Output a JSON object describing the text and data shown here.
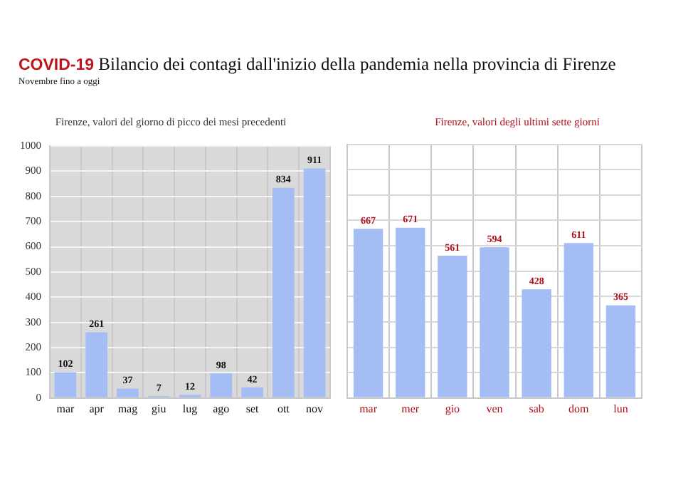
{
  "chart_data": [
    {
      "type": "bar",
      "title": "COVID-19 Bilancio dei contagi dall'inizio della pandemia nella provincia di Firenze",
      "subtitle": "Novembre fino a oggi",
      "annotations": [
        "Firenze, valori del giorno di picco dei mesi precedenti"
      ],
      "categories": [
        "mar",
        "apr",
        "mag",
        "giu",
        "lug",
        "ago",
        "set",
        "ott",
        "nov"
      ],
      "values": [
        102,
        261,
        37,
        7,
        12,
        98,
        42,
        834,
        911
      ],
      "color": "#a4bdf5",
      "ylim": [
        0,
        1000
      ],
      "yticks": [
        0,
        100,
        200,
        300,
        400,
        500,
        600,
        700,
        800,
        900,
        1000
      ],
      "grid": true,
      "data_labels": true
    },
    {
      "type": "bar",
      "title": "Firenze, valori degli ultimi sette giorni",
      "categories": [
        "mar",
        "mer",
        "gio",
        "ven",
        "sab",
        "dom",
        "lun"
      ],
      "values": [
        667,
        671,
        561,
        594,
        428,
        611,
        365
      ],
      "color": "#a4bdf5",
      "ylim": [
        0,
        1000
      ],
      "yticks": [
        {
          "value": 0,
          "label": null
        },
        {
          "value": 100,
          "label": null
        },
        {
          "value": 200,
          "label": null
        },
        {
          "value": 300,
          "label": null
        },
        {
          "value": 400,
          "label": null
        },
        {
          "value": 500,
          "label": null
        },
        {
          "value": 600,
          "label": null
        },
        {
          "value": 700,
          "label": null
        },
        {
          "value": 800,
          "label": null
        },
        {
          "value": 900,
          "label": null
        },
        {
          "value": 1000,
          "label": null
        }
      ],
      "grid": true,
      "tick_labels": "x",
      "data_labels": true
    }
  ]
}
